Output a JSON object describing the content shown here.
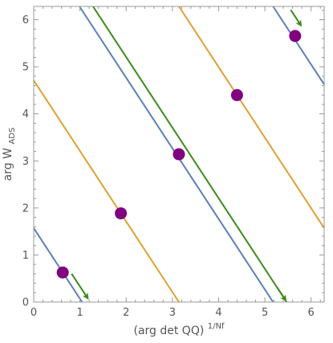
{
  "chart_data": {
    "type": "line",
    "xlabel": "(arg det QQ)",
    "xlabel_sup": "1/Nf",
    "ylabel": "arg W",
    "ylabel_sub": "ADS",
    "xlim": [
      0,
      6.283
    ],
    "ylim": [
      0,
      6.283
    ],
    "xticks": [
      0,
      1,
      2,
      3,
      4,
      5,
      6
    ],
    "yticks": [
      0,
      1,
      2,
      3,
      4,
      5,
      6
    ],
    "grid": false,
    "colors": {
      "blue": "#5b7fb8",
      "orange": "#e0a030",
      "green": "#3d8a1a",
      "marker": "#800080",
      "frame": "#999999"
    },
    "lines": [
      {
        "color": "blue",
        "points": [
          [
            0,
            1.571
          ],
          [
            1.047,
            0
          ]
        ]
      },
      {
        "color": "blue",
        "points": [
          [
            0.99,
            6.283
          ],
          [
            5.178,
            0
          ]
        ]
      },
      {
        "color": "blue",
        "points": [
          [
            5.178,
            6.283
          ],
          [
            6.283,
            4.625
          ]
        ]
      },
      {
        "color": "orange",
        "points": [
          [
            0,
            4.712
          ],
          [
            3.141,
            0
          ]
        ]
      },
      {
        "color": "orange",
        "points": [
          [
            3.141,
            6.283
          ],
          [
            6.283,
            1.571
          ]
        ]
      },
      {
        "color": "green",
        "points": [
          [
            1.283,
            6.283
          ],
          [
            5.471,
            0
          ]
        ]
      }
    ],
    "arrows": [
      {
        "color": "green",
        "from": [
          0.82,
          0.6
        ],
        "to": [
          1.17,
          0.08
        ]
      },
      {
        "color": "green",
        "from": [
          5.26,
          0.32
        ],
        "to": [
          5.45,
          0.04
        ]
      },
      {
        "color": "green",
        "from": [
          5.56,
          6.21
        ],
        "to": [
          5.78,
          5.88
        ]
      }
    ],
    "points": [
      {
        "x": 0.628,
        "y": 0.628
      },
      {
        "x": 1.885,
        "y": 1.885
      },
      {
        "x": 3.141,
        "y": 3.141
      },
      {
        "x": 4.398,
        "y": 4.398
      },
      {
        "x": 5.655,
        "y": 5.655
      }
    ]
  }
}
